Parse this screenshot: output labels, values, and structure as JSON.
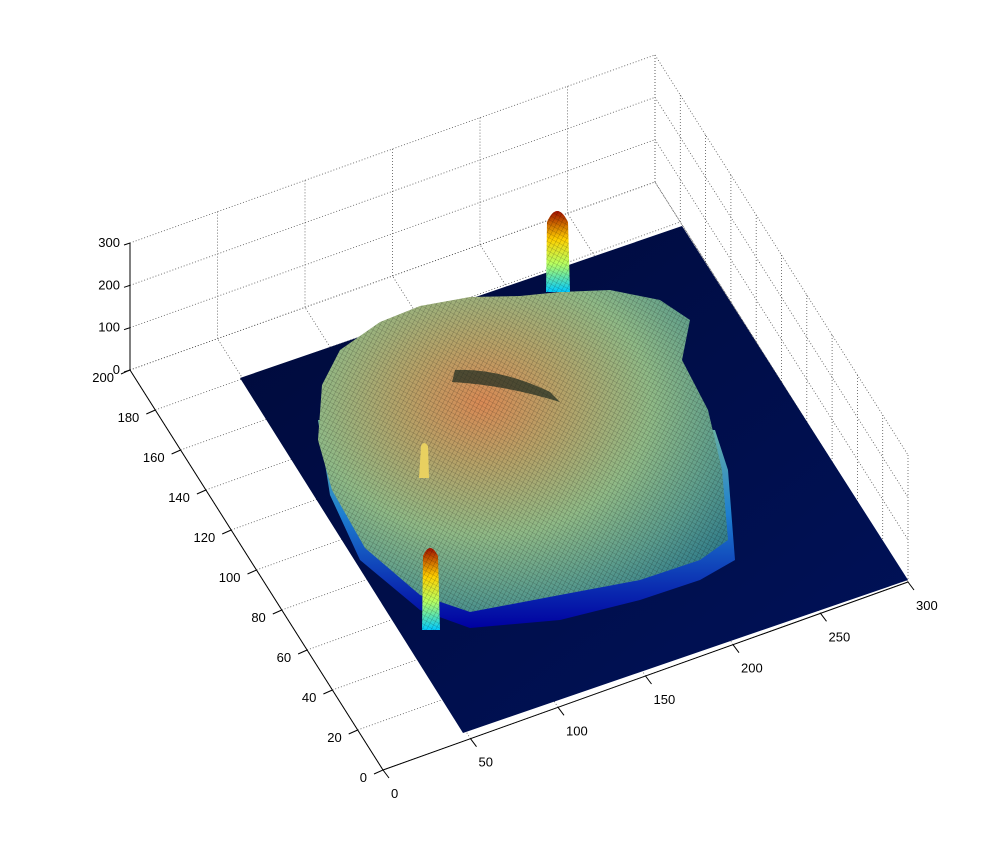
{
  "chart_data": {
    "type": "surface3d",
    "title": "",
    "xlabel": "",
    "ylabel": "",
    "zlabel": "",
    "grid": true,
    "colormap": "jet",
    "colormap_stops": [
      "#00008f",
      "#0000ff",
      "#00ffff",
      "#ffff00",
      "#ff0000",
      "#800000"
    ],
    "xlim": [
      0,
      300
    ],
    "ylim": [
      0,
      200
    ],
    "zlim": [
      0,
      300
    ],
    "x_ticks": [
      "0",
      "50",
      "100",
      "150",
      "200",
      "250",
      "300"
    ],
    "y_ticks": [
      "0",
      "20",
      "40",
      "60",
      "80",
      "100",
      "120",
      "140",
      "160",
      "180",
      "200"
    ],
    "z_ticks": [
      "0",
      "100",
      "200",
      "300"
    ],
    "features": [
      {
        "name": "main plateau",
        "x_range": [
          55,
          225
        ],
        "y_range": [
          70,
          200
        ],
        "z_approx": [
          120,
          210
        ]
      },
      {
        "name": "tall spike",
        "x": 40,
        "y": 200,
        "z_max": 300
      },
      {
        "name": "small spike",
        "x": 230,
        "y": 140,
        "z_max": 200
      },
      {
        "name": "thin spike",
        "x": 195,
        "y": 195,
        "z_max": 150
      }
    ]
  }
}
